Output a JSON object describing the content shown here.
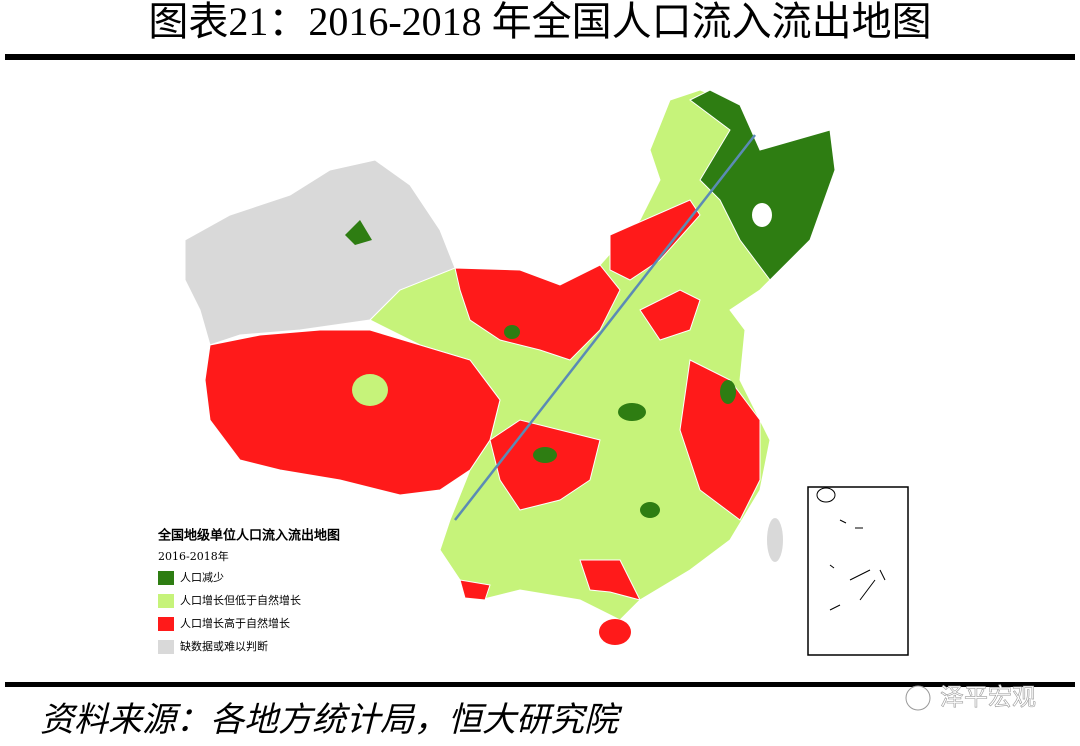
{
  "title": "图表21：2016-2018 年全国人口流入流出地图",
  "legend": {
    "title": "全国地级单位人口流入流出地图",
    "period": "2016-2018年",
    "items": [
      "人口减少",
      "人口增长但低于自然增长",
      "人口增长高于自然增长",
      "缺数据或难以判断"
    ]
  },
  "source": "资料来源：各地方统计局，恒大研究院",
  "watermark": "泽平宏观"
}
